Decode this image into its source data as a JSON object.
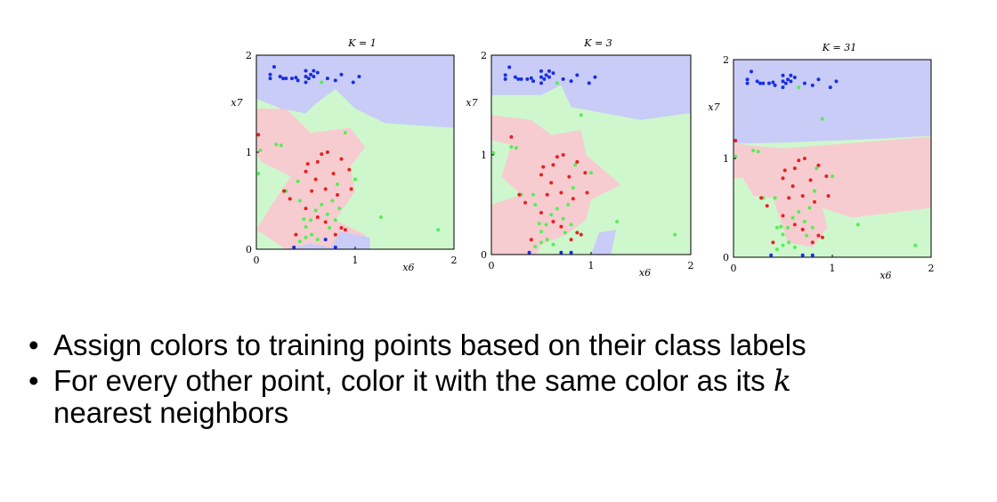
{
  "colors": {
    "region_blue": "#c8ccf6",
    "region_green": "#cff7cd",
    "region_red": "#f6ccd0",
    "point_blue": "#1a2ee0",
    "point_green": "#55ee55",
    "point_red": "#e82020"
  },
  "chart_data": [
    {
      "type": "scatter",
      "title": "K = 1",
      "xlabel": "x6",
      "ylabel": "x7",
      "xlim": [
        0,
        2
      ],
      "ylim": [
        0,
        2
      ],
      "xticks": [
        "0",
        "1",
        "2"
      ],
      "yticks": [
        "0",
        "1",
        "2"
      ],
      "series": [
        {
          "class": "blue",
          "points": [
            [
              0.18,
              1.88
            ],
            [
              0.14,
              1.8
            ],
            [
              0.14,
              1.76
            ],
            [
              0.24,
              1.78
            ],
            [
              0.27,
              1.76
            ],
            [
              0.3,
              1.76
            ],
            [
              0.36,
              1.76
            ],
            [
              0.4,
              1.77
            ],
            [
              0.42,
              1.74
            ],
            [
              0.5,
              1.72
            ],
            [
              0.5,
              1.78
            ],
            [
              0.53,
              1.76
            ],
            [
              0.55,
              1.8
            ],
            [
              0.5,
              1.84
            ],
            [
              0.58,
              1.84
            ],
            [
              0.58,
              1.78
            ],
            [
              0.62,
              1.82
            ],
            [
              0.72,
              1.76
            ],
            [
              0.8,
              1.74
            ],
            [
              0.86,
              1.8
            ],
            [
              0.98,
              1.72
            ],
            [
              1.04,
              1.78
            ],
            [
              0.7,
              0.1
            ],
            [
              0.38,
              0.02
            ],
            [
              0.8,
              0.02
            ]
          ]
        },
        {
          "class": "green",
          "points": [
            [
              0.02,
              0.78
            ],
            [
              0.04,
              1.02
            ],
            [
              0.2,
              1.08
            ],
            [
              0.25,
              1.07
            ],
            [
              0.66,
              1.72
            ],
            [
              0.9,
              1.2
            ],
            [
              1.0,
              0.72
            ],
            [
              1.26,
              0.33
            ],
            [
              1.84,
              0.2
            ],
            [
              0.3,
              0.6
            ],
            [
              0.42,
              0.7
            ],
            [
              0.44,
              0.5
            ],
            [
              0.48,
              0.31
            ],
            [
              0.5,
              0.23
            ],
            [
              0.55,
              0.3
            ],
            [
              0.56,
              0.15
            ],
            [
              0.6,
              0.4
            ],
            [
              0.62,
              0.1
            ],
            [
              0.66,
              0.46
            ],
            [
              0.72,
              0.36
            ],
            [
              0.74,
              0.22
            ],
            [
              0.77,
              0.5
            ],
            [
              0.8,
              0.3
            ],
            [
              0.82,
              0.67
            ],
            [
              0.84,
              0.42
            ],
            [
              0.44,
              0.08
            ],
            [
              0.5,
              0.12
            ]
          ]
        },
        {
          "class": "red",
          "points": [
            [
              0.02,
              1.18
            ],
            [
              0.5,
              0.8
            ],
            [
              0.52,
              0.88
            ],
            [
              0.56,
              0.6
            ],
            [
              0.6,
              0.72
            ],
            [
              0.62,
              0.9
            ],
            [
              0.66,
              0.98
            ],
            [
              0.7,
              0.62
            ],
            [
              0.72,
              1.0
            ],
            [
              0.78,
              0.78
            ],
            [
              0.82,
              0.56
            ],
            [
              0.86,
              0.93
            ],
            [
              0.94,
              0.82
            ],
            [
              0.96,
              0.62
            ],
            [
              0.28,
              0.6
            ],
            [
              0.34,
              0.52
            ],
            [
              0.4,
              0.15
            ],
            [
              0.5,
              0.42
            ],
            [
              0.62,
              0.33
            ],
            [
              0.7,
              0.28
            ],
            [
              0.86,
              0.22
            ],
            [
              0.9,
              0.2
            ],
            [
              0.8,
              0.15
            ]
          ]
        }
      ]
    },
    {
      "type": "scatter",
      "title": "K = 3",
      "xlabel": "x6",
      "ylabel": "x7",
      "xlim": [
        0,
        2
      ],
      "ylim": [
        0,
        2
      ],
      "xticks": [
        "0",
        "1",
        "2"
      ],
      "yticks": [
        "0",
        "1",
        "2"
      ],
      "series": [
        {
          "class": "blue",
          "points": [
            [
              0.18,
              1.88
            ],
            [
              0.14,
              1.8
            ],
            [
              0.14,
              1.76
            ],
            [
              0.24,
              1.78
            ],
            [
              0.27,
              1.76
            ],
            [
              0.3,
              1.76
            ],
            [
              0.36,
              1.76
            ],
            [
              0.4,
              1.77
            ],
            [
              0.42,
              1.74
            ],
            [
              0.5,
              1.72
            ],
            [
              0.5,
              1.78
            ],
            [
              0.53,
              1.76
            ],
            [
              0.55,
              1.8
            ],
            [
              0.5,
              1.84
            ],
            [
              0.58,
              1.84
            ],
            [
              0.58,
              1.78
            ],
            [
              0.62,
              1.82
            ],
            [
              0.72,
              1.76
            ],
            [
              0.8,
              1.74
            ],
            [
              0.86,
              1.8
            ],
            [
              0.98,
              1.72
            ],
            [
              1.04,
              1.78
            ],
            [
              0.7,
              0.02
            ],
            [
              0.38,
              0.02
            ],
            [
              0.8,
              0.02
            ]
          ]
        },
        {
          "class": "green",
          "points": [
            [
              0.02,
              1.02
            ],
            [
              0.2,
              1.08
            ],
            [
              0.25,
              1.07
            ],
            [
              0.66,
              1.72
            ],
            [
              0.9,
              1.4
            ],
            [
              1.0,
              0.82
            ],
            [
              1.26,
              0.33
            ],
            [
              1.84,
              0.2
            ],
            [
              0.3,
              0.6
            ],
            [
              0.42,
              0.6
            ],
            [
              0.44,
              0.5
            ],
            [
              0.48,
              0.31
            ],
            [
              0.5,
              0.23
            ],
            [
              0.55,
              0.3
            ],
            [
              0.56,
              0.15
            ],
            [
              0.6,
              0.4
            ],
            [
              0.62,
              0.1
            ],
            [
              0.66,
              0.46
            ],
            [
              0.72,
              0.36
            ],
            [
              0.74,
              0.22
            ],
            [
              0.77,
              0.5
            ],
            [
              0.8,
              0.3
            ],
            [
              0.82,
              0.67
            ],
            [
              0.84,
              0.9
            ],
            [
              0.44,
              0.08
            ],
            [
              0.5,
              0.12
            ]
          ]
        },
        {
          "class": "red",
          "points": [
            [
              0.2,
              1.18
            ],
            [
              0.5,
              0.8
            ],
            [
              0.52,
              0.88
            ],
            [
              0.56,
              0.6
            ],
            [
              0.6,
              0.72
            ],
            [
              0.62,
              0.9
            ],
            [
              0.66,
              0.98
            ],
            [
              0.7,
              0.62
            ],
            [
              0.72,
              1.0
            ],
            [
              0.78,
              0.78
            ],
            [
              0.82,
              0.56
            ],
            [
              0.86,
              0.93
            ],
            [
              0.94,
              0.82
            ],
            [
              0.96,
              0.62
            ],
            [
              0.28,
              0.6
            ],
            [
              0.34,
              0.52
            ],
            [
              0.4,
              0.15
            ],
            [
              0.5,
              0.42
            ],
            [
              0.62,
              0.33
            ],
            [
              0.7,
              0.28
            ],
            [
              0.86,
              0.22
            ],
            [
              0.9,
              0.2
            ],
            [
              0.8,
              0.15
            ]
          ]
        }
      ]
    },
    {
      "type": "scatter",
      "title": "K = 31",
      "xlabel": "x6",
      "ylabel": "x7",
      "xlim": [
        0,
        2
      ],
      "ylim": [
        0,
        2
      ],
      "xticks": [
        "0",
        "1",
        "2"
      ],
      "yticks": [
        "0",
        "1",
        "2"
      ],
      "series": [
        {
          "class": "blue",
          "points": [
            [
              0.18,
              1.88
            ],
            [
              0.14,
              1.8
            ],
            [
              0.14,
              1.76
            ],
            [
              0.24,
              1.78
            ],
            [
              0.27,
              1.76
            ],
            [
              0.3,
              1.76
            ],
            [
              0.36,
              1.76
            ],
            [
              0.4,
              1.77
            ],
            [
              0.42,
              1.74
            ],
            [
              0.5,
              1.72
            ],
            [
              0.5,
              1.78
            ],
            [
              0.53,
              1.76
            ],
            [
              0.55,
              1.8
            ],
            [
              0.5,
              1.84
            ],
            [
              0.58,
              1.84
            ],
            [
              0.58,
              1.78
            ],
            [
              0.62,
              1.82
            ],
            [
              0.72,
              1.76
            ],
            [
              0.8,
              1.74
            ],
            [
              0.86,
              1.8
            ],
            [
              0.98,
              1.72
            ],
            [
              1.04,
              1.78
            ],
            [
              0.7,
              0.02
            ],
            [
              0.38,
              0.02
            ],
            [
              0.8,
              0.02
            ]
          ]
        },
        {
          "class": "green",
          "points": [
            [
              0.02,
              1.02
            ],
            [
              0.2,
              1.08
            ],
            [
              0.25,
              1.07
            ],
            [
              0.66,
              1.72
            ],
            [
              0.9,
              1.4
            ],
            [
              1.0,
              0.82
            ],
            [
              1.26,
              0.33
            ],
            [
              1.84,
              0.12
            ],
            [
              0.3,
              0.6
            ],
            [
              0.42,
              0.6
            ],
            [
              0.44,
              0.3
            ],
            [
              0.48,
              0.31
            ],
            [
              0.5,
              0.23
            ],
            [
              0.55,
              0.3
            ],
            [
              0.56,
              0.15
            ],
            [
              0.6,
              0.4
            ],
            [
              0.62,
              0.1
            ],
            [
              0.66,
              0.46
            ],
            [
              0.72,
              0.36
            ],
            [
              0.74,
              0.22
            ],
            [
              0.77,
              0.5
            ],
            [
              0.8,
              0.3
            ],
            [
              0.82,
              0.67
            ],
            [
              0.84,
              0.9
            ],
            [
              0.44,
              0.08
            ],
            [
              0.5,
              0.12
            ]
          ]
        },
        {
          "class": "red",
          "points": [
            [
              0.02,
              1.18
            ],
            [
              0.5,
              0.8
            ],
            [
              0.52,
              0.88
            ],
            [
              0.56,
              0.6
            ],
            [
              0.6,
              0.72
            ],
            [
              0.62,
              0.9
            ],
            [
              0.66,
              0.98
            ],
            [
              0.7,
              0.62
            ],
            [
              0.72,
              1.0
            ],
            [
              0.78,
              0.78
            ],
            [
              0.82,
              0.56
            ],
            [
              0.86,
              0.93
            ],
            [
              0.94,
              0.82
            ],
            [
              0.96,
              0.62
            ],
            [
              0.28,
              0.6
            ],
            [
              0.34,
              0.52
            ],
            [
              0.4,
              0.15
            ],
            [
              0.5,
              0.42
            ],
            [
              0.62,
              0.33
            ],
            [
              0.7,
              0.28
            ],
            [
              0.86,
              0.22
            ],
            [
              0.9,
              0.2
            ],
            [
              0.8,
              0.15
            ]
          ]
        }
      ]
    }
  ],
  "bullets": [
    {
      "text": "Assign colors to training points based on their class labels"
    },
    {
      "text": "For every other point, color it with the same color as its ",
      "var": "k",
      "text2": "nearest neighbors"
    }
  ]
}
